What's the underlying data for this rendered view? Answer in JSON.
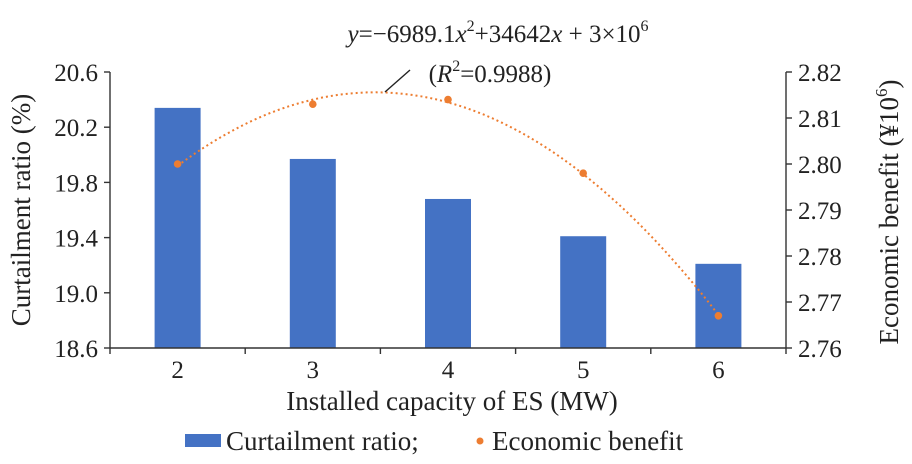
{
  "chart_data": {
    "type": "bar",
    "categories": [
      "2",
      "3",
      "4",
      "5",
      "6"
    ],
    "xlabel": "Installed capacity of ES (MW)",
    "series": [
      {
        "name": "Curtailment ratio",
        "chart_type": "bar",
        "axis": "left",
        "color": "#4472c4",
        "values": [
          20.34,
          19.97,
          19.68,
          19.41,
          19.21
        ]
      },
      {
        "name": "Economic benefit",
        "chart_type": "scatter",
        "axis": "right",
        "color": "#ed7d31",
        "values": [
          2.8,
          2.813,
          2.814,
          2.798,
          2.767
        ]
      }
    ],
    "legend_labels": [
      "Curtailment ratio;",
      "Economic benefit"
    ],
    "legend_position": "bottom",
    "y_left": {
      "label": "Curtailment ratio (%)",
      "range": [
        18.6,
        20.6
      ],
      "ticks": [
        "18.6",
        "19.0",
        "19.4",
        "19.8",
        "20.2",
        "20.6"
      ]
    },
    "y_right": {
      "label_main": "Economic benefit (¥10",
      "label_sup": "6",
      "label_end": ")",
      "range": [
        2.76,
        2.82
      ],
      "ticks": [
        "2.76",
        "2.77",
        "2.78",
        "2.79",
        "2.80",
        "2.81",
        "2.82"
      ]
    },
    "trendline": {
      "type": "polynomial",
      "order": 2,
      "style": "dotted",
      "color": "#ed7d31",
      "equation": {
        "lhs": "y",
        "eq": "=−6989.1",
        "var1": "x",
        "sup1": "2",
        "plus1": "+34642",
        "var2": "x",
        "plus2": " + 3×10",
        "sup2": "6"
      },
      "r2": {
        "open": "(",
        "var": "R",
        "sup": "2",
        "rest": "=0.9988)"
      }
    },
    "grid": false
  }
}
